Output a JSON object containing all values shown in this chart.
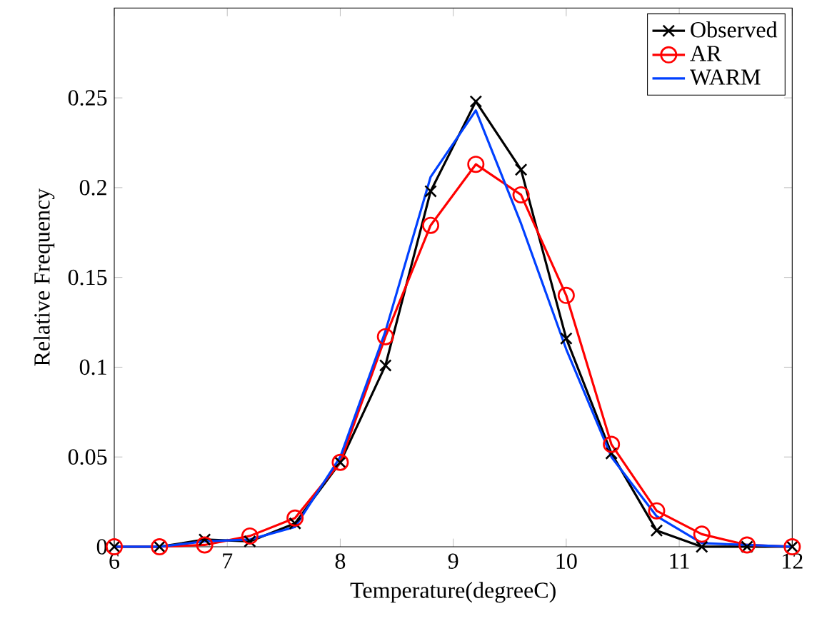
{
  "chart_data": {
    "type": "line",
    "xlabel": "Temperature(degreeC)",
    "ylabel": "Relative Frequency",
    "x": [
      6,
      6.4,
      6.8,
      7.2,
      7.6,
      8,
      8.4,
      8.8,
      9.2,
      9.6,
      10,
      10.4,
      10.8,
      11.2,
      11.6,
      12
    ],
    "series": [
      {
        "name": "Observed",
        "color": "#000000",
        "marker": "cross",
        "values": [
          0,
          0,
          0.004,
          0.003,
          0.013,
          0.047,
          0.101,
          0.198,
          0.248,
          0.21,
          0.116,
          0.052,
          0.009,
          0,
          0,
          0
        ]
      },
      {
        "name": "AR",
        "color": "#ff0000",
        "marker": "circle",
        "values": [
          0,
          0,
          0.001,
          0.006,
          0.016,
          0.047,
          0.117,
          0.179,
          0.213,
          0.196,
          0.14,
          0.057,
          0.02,
          0.007,
          0.001,
          0
        ]
      },
      {
        "name": "WARM",
        "color": "#0040ff",
        "marker": "none",
        "values": [
          0,
          0,
          0.003,
          0.004,
          0.011,
          0.05,
          0.12,
          0.206,
          0.243,
          0.18,
          0.11,
          0.05,
          0.017,
          0.002,
          0.001,
          0
        ]
      }
    ],
    "xlim": [
      6,
      12
    ],
    "ylim": [
      0,
      0.3
    ],
    "xticks": [
      6,
      7,
      8,
      9,
      10,
      11,
      12
    ],
    "yticks": [
      0,
      0.05,
      0.1,
      0.15,
      0.2,
      0.25
    ],
    "grid": false,
    "legend": "top right",
    "line_style": "solid"
  }
}
